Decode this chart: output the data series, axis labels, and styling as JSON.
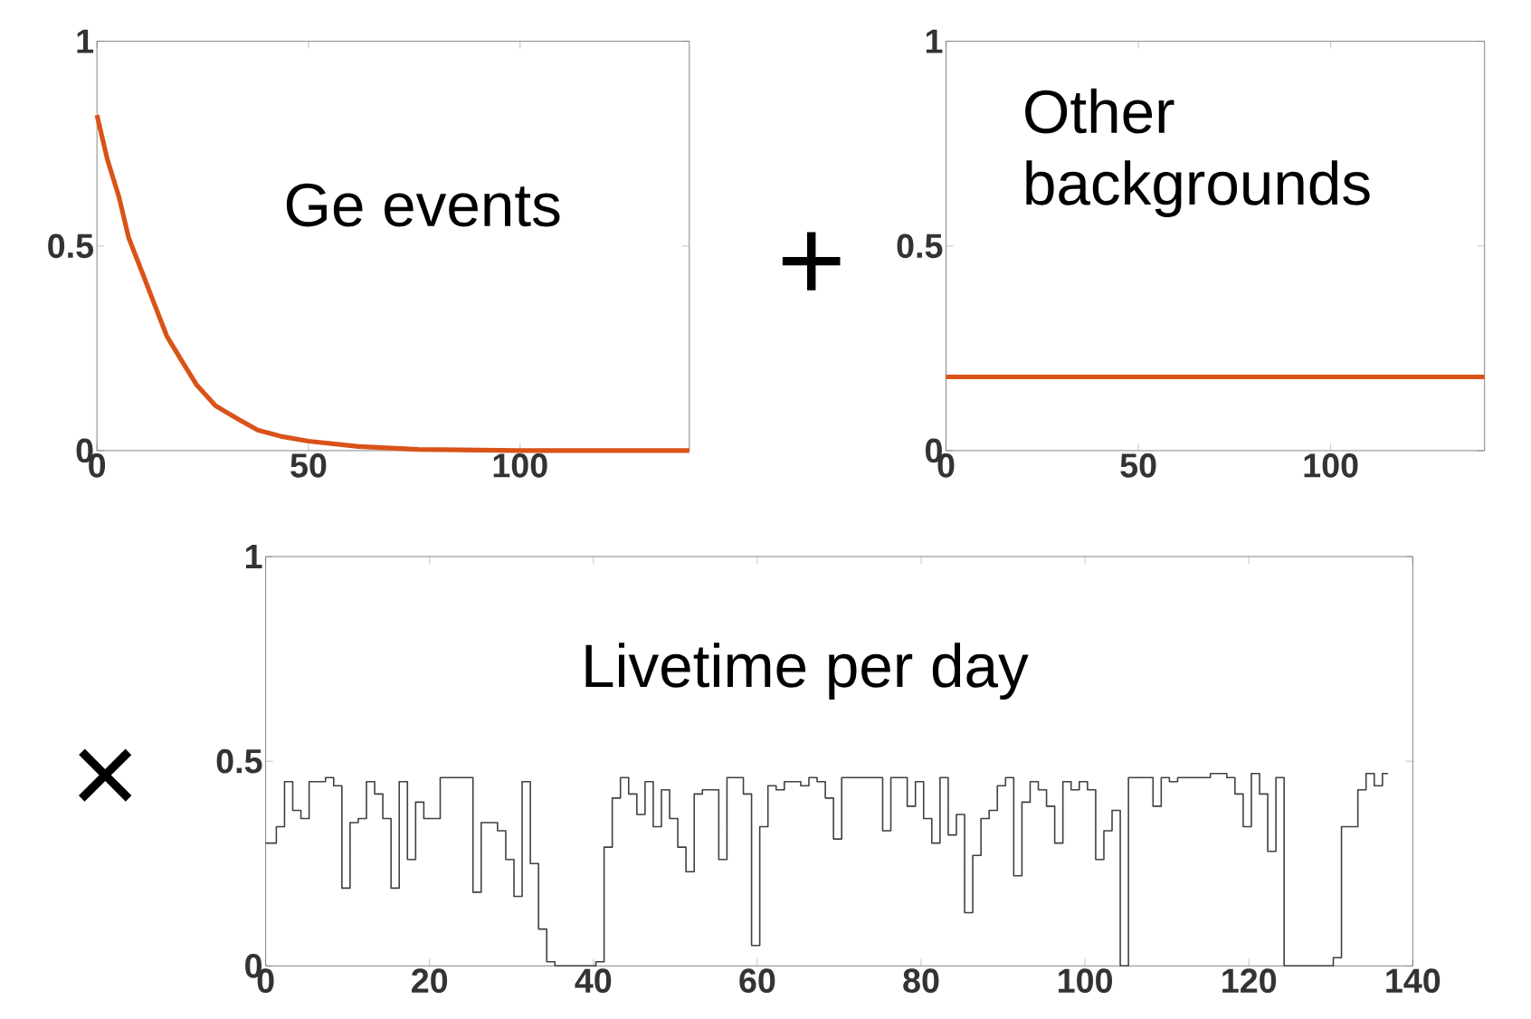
{
  "chart_data": [
    {
      "type": "line",
      "annotations": [
        "Ge events"
      ],
      "xlim": [
        0,
        140
      ],
      "ylim": [
        0,
        1
      ],
      "xticks": [
        0,
        50,
        100
      ],
      "yticks": [
        0,
        0.5,
        1
      ],
      "marker": "none",
      "line_style": "solid",
      "series": [
        {
          "color": "#d95319",
          "x": [
            0,
            2.5,
            5.2,
            7.5,
            10.9,
            13.5,
            16.5,
            20,
            23.6,
            28,
            33.5,
            38,
            43.4,
            50,
            61.8,
            76,
            100,
            140
          ],
          "values": [
            0.82,
            0.71,
            0.62,
            0.52,
            0.43,
            0.36,
            0.28,
            0.22,
            0.16,
            0.11,
            0.076,
            0.05,
            0.035,
            0.023,
            0.01,
            0.003,
            0,
            0
          ]
        }
      ]
    },
    {
      "type": "line",
      "annotations": [
        "+",
        "Other backgrounds"
      ],
      "xlim": [
        0,
        140
      ],
      "ylim": [
        0,
        1
      ],
      "xticks": [
        0,
        50,
        100
      ],
      "yticks": [
        0,
        0.5,
        1
      ],
      "marker": "none",
      "line_style": "solid",
      "series": [
        {
          "color": "#d95319",
          "x": [
            0,
            140
          ],
          "values": [
            0.18,
            0.18
          ]
        }
      ]
    },
    {
      "type": "step",
      "annotations": [
        "×",
        "Livetime per day"
      ],
      "xlim": [
        0,
        140
      ],
      "ylim": [
        0,
        1
      ],
      "xticks": [
        0,
        20,
        40,
        60,
        80,
        100,
        120,
        140
      ],
      "yticks": [
        0,
        0.5,
        1
      ],
      "marker": "none",
      "line_style": "solid",
      "series": [
        {
          "color": "#404040",
          "x": [
            0,
            1.3,
            2.3,
            3.3,
            4.3,
            5.3,
            6.3,
            7.3,
            8.3,
            9.3,
            10.3,
            11.3,
            12.3,
            13.3,
            14.3,
            15.3,
            16.3,
            17.3,
            18.3,
            19.3,
            20.3,
            21.3,
            22.3,
            25.3,
            26.3,
            27.3,
            28.3,
            29.3,
            30.3,
            31.3,
            32.3,
            33.3,
            34.3,
            35.3,
            40.3,
            41.3,
            42.3,
            43.3,
            44.3,
            45.3,
            46.3,
            47.3,
            48.3,
            49.3,
            50.3,
            51.3,
            52.3,
            53.3,
            54.3,
            55.3,
            56.3,
            57.3,
            58.3,
            59.3,
            60.3,
            61.3,
            62.3,
            63.3,
            64.3,
            65.3,
            66.3,
            67.3,
            68.3,
            69.3,
            70.3,
            71.3,
            75.3,
            76.3,
            77.3,
            78.3,
            79.3,
            80.3,
            81.3,
            82.3,
            83.3,
            84.3,
            85.3,
            86.3,
            87.3,
            88.3,
            89.3,
            90.3,
            91.3,
            92.3,
            93.3,
            94.3,
            95.3,
            96.3,
            97.3,
            98.3,
            99.3,
            100.3,
            101.3,
            102.3,
            103.3,
            104.3,
            105.3,
            108.3,
            109.3,
            110.3,
            111.3,
            112.3,
            113.3,
            114.3,
            115.3,
            116.3,
            117.3,
            118.3,
            119.3,
            120.3,
            121.3,
            122.3,
            123.3,
            124.3,
            130.3,
            131.3,
            132.3,
            133.3,
            134.3,
            135.3,
            136.3,
            137
          ],
          "values": [
            0.3,
            0.34,
            0.45,
            0.38,
            0.36,
            0.45,
            0.45,
            0.46,
            0.44,
            0.19,
            0.35,
            0.36,
            0.45,
            0.42,
            0.36,
            0.19,
            0.45,
            0.26,
            0.4,
            0.36,
            0.36,
            0.46,
            0.46,
            0.18,
            0.35,
            0.35,
            0.33,
            0.26,
            0.17,
            0.45,
            0.25,
            0.09,
            0.01,
            0,
            0.01,
            0.29,
            0.41,
            0.46,
            0.42,
            0.37,
            0.45,
            0.34,
            0.43,
            0.36,
            0.29,
            0.23,
            0.42,
            0.43,
            0.43,
            0.26,
            0.46,
            0.46,
            0.42,
            0.05,
            0.34,
            0.44,
            0.43,
            0.45,
            0.45,
            0.44,
            0.46,
            0.45,
            0.41,
            0.31,
            0.46,
            0.46,
            0.33,
            0.46,
            0.46,
            0.39,
            0.45,
            0.36,
            0.3,
            0.46,
            0.32,
            0.37,
            0.13,
            0.27,
            0.36,
            0.38,
            0.44,
            0.46,
            0.22,
            0.4,
            0.45,
            0.43,
            0.39,
            0.3,
            0.45,
            0.43,
            0.45,
            0.43,
            0.26,
            0.33,
            0.38,
            0,
            0.46,
            0.39,
            0.46,
            0.45,
            0.46,
            0.46,
            0.46,
            0.46,
            0.47,
            0.47,
            0.46,
            0.42,
            0.34,
            0.47,
            0.42,
            0.28,
            0.46,
            0,
            0.02,
            0.34,
            0.34,
            0.43,
            0.47,
            0.44,
            0.47,
            0.47
          ]
        }
      ]
    }
  ]
}
